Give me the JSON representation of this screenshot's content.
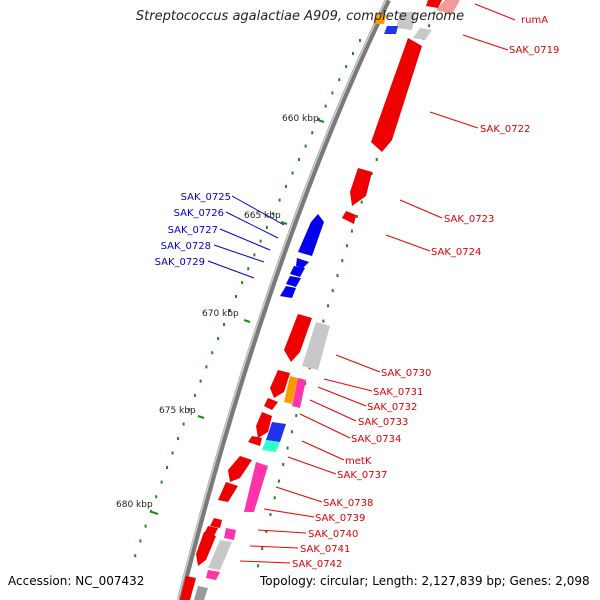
{
  "title": "Streptococcus agalactiae A909, complete genome",
  "footer": {
    "accession": "Accession: NC_007432",
    "summary": "Topology: circular; Length: 2,127,839 bp; Genes: 2,098"
  },
  "colors": {
    "backbone": "#8a8a8a",
    "tick": "#1a8a1a",
    "forward_gene": "#ee0000",
    "reverse_gene": "#0000ee",
    "pseudo_gene": "#c8c8c8",
    "highlight_pink": "#ff33aa",
    "highlight_orange": "#ff9900",
    "highlight_cyan": "#33ffcc",
    "forward_label": "#dd0000",
    "reverse_label": "#0000cc"
  },
  "scale_labels": [
    "660 kbp",
    "665 kbp",
    "670 kbp",
    "675 kbp",
    "680 kbp"
  ],
  "gene_labels_forward": [
    "rumA",
    "SAK_0719",
    "SAK_0722",
    "SAK_0723",
    "SAK_0724",
    "SAK_0730",
    "SAK_0731",
    "SAK_0732",
    "SAK_0733",
    "SAK_0734",
    "metK",
    "SAK_0737",
    "SAK_0738",
    "SAK_0739",
    "SAK_0740",
    "SAK_0741",
    "SAK_0742"
  ],
  "gene_labels_reverse": [
    "SAK_0725",
    "SAK_0726",
    "SAK_0727",
    "SAK_0728",
    "SAK_0729"
  ]
}
